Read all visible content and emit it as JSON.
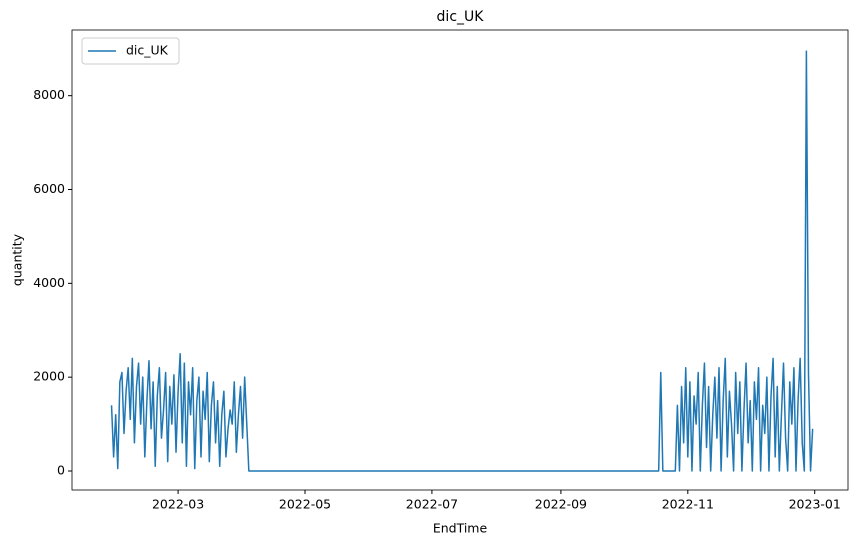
{
  "chart_data": {
    "type": "line",
    "title": "dic_UK",
    "x_label": "EndTime",
    "y_label": "quantity",
    "legend": "upper left",
    "x": [
      "2022-01-28",
      "2022-01-29",
      "2022-01-30",
      "2022-01-31",
      "2022-02-01",
      "2022-02-02",
      "2022-02-03",
      "2022-02-04",
      "2022-02-05",
      "2022-02-06",
      "2022-02-07",
      "2022-02-08",
      "2022-02-09",
      "2022-02-10",
      "2022-02-11",
      "2022-02-12",
      "2022-02-13",
      "2022-02-14",
      "2022-02-15",
      "2022-02-16",
      "2022-02-17",
      "2022-02-18",
      "2022-02-19",
      "2022-02-20",
      "2022-02-21",
      "2022-02-22",
      "2022-02-23",
      "2022-02-24",
      "2022-02-25",
      "2022-02-26",
      "2022-02-27",
      "2022-02-28",
      "2022-03-01",
      "2022-03-02",
      "2022-03-03",
      "2022-03-04",
      "2022-03-05",
      "2022-03-06",
      "2022-03-07",
      "2022-03-08",
      "2022-03-09",
      "2022-03-10",
      "2022-03-11",
      "2022-03-12",
      "2022-03-13",
      "2022-03-14",
      "2022-03-15",
      "2022-03-16",
      "2022-03-17",
      "2022-03-18",
      "2022-03-19",
      "2022-03-20",
      "2022-03-21",
      "2022-03-22",
      "2022-03-23",
      "2022-03-24",
      "2022-03-25",
      "2022-03-26",
      "2022-03-27",
      "2022-03-28",
      "2022-03-29",
      "2022-03-30",
      "2022-03-31",
      "2022-04-01",
      "2022-04-02",
      "2022-04-03",
      "2022-04-04",
      "2022-10-18",
      "2022-10-19",
      "2022-10-20",
      "2022-10-26",
      "2022-10-27",
      "2022-10-28",
      "2022-10-29",
      "2022-10-30",
      "2022-10-31",
      "2022-11-01",
      "2022-11-02",
      "2022-11-03",
      "2022-11-04",
      "2022-11-05",
      "2022-11-06",
      "2022-11-07",
      "2022-11-08",
      "2022-11-09",
      "2022-11-10",
      "2022-11-11",
      "2022-11-12",
      "2022-11-13",
      "2022-11-14",
      "2022-11-15",
      "2022-11-16",
      "2022-11-17",
      "2022-11-18",
      "2022-11-19",
      "2022-11-20",
      "2022-11-21",
      "2022-11-22",
      "2022-11-23",
      "2022-11-24",
      "2022-11-25",
      "2022-11-26",
      "2022-11-27",
      "2022-11-28",
      "2022-11-29",
      "2022-11-30",
      "2022-12-01",
      "2022-12-02",
      "2022-12-03",
      "2022-12-04",
      "2022-12-05",
      "2022-12-06",
      "2022-12-07",
      "2022-12-08",
      "2022-12-09",
      "2022-12-10",
      "2022-12-11",
      "2022-12-12",
      "2022-12-13",
      "2022-12-14",
      "2022-12-15",
      "2022-12-16",
      "2022-12-17",
      "2022-12-18",
      "2022-12-19",
      "2022-12-20",
      "2022-12-21",
      "2022-12-22",
      "2022-12-23",
      "2022-12-24",
      "2022-12-25",
      "2022-12-26",
      "2022-12-27",
      "2022-12-28",
      "2022-12-29",
      "2022-12-30",
      "2022-12-31"
    ],
    "series": [
      {
        "name": "dic_UK",
        "color": "#1f77b4",
        "values": [
          1400,
          300,
          1200,
          50,
          1900,
          2100,
          800,
          1700,
          2200,
          1100,
          2400,
          600,
          1800,
          2300,
          1000,
          2000,
          300,
          1500,
          2350,
          900,
          1900,
          100,
          1600,
          2200,
          700,
          1300,
          2100,
          200,
          1800,
          1000,
          2050,
          400,
          1700,
          2500,
          600,
          2300,
          100,
          1900,
          1200,
          2200,
          50,
          1500,
          2000,
          300,
          1700,
          1100,
          2100,
          200,
          1400,
          1900,
          600,
          1500,
          100,
          1200,
          1700,
          300,
          900,
          1300,
          1000,
          1900,
          400,
          1200,
          1800,
          700,
          2000,
          1000,
          0,
          0,
          2100,
          0,
          0,
          1400,
          0,
          1800,
          600,
          2200,
          300,
          1900,
          0,
          1600,
          1000,
          2100,
          0,
          1400,
          2300,
          500,
          1800,
          0,
          1200,
          2000,
          700,
          2200,
          0,
          1500,
          2400,
          300,
          1700,
          1000,
          0,
          2100,
          800,
          1900,
          0,
          1300,
          2300,
          600,
          1500,
          0,
          1900,
          1100,
          2200,
          0,
          1400,
          800,
          2000,
          0,
          1600,
          2400,
          300,
          1800,
          0,
          1200,
          2300,
          700,
          0,
          1900,
          1000,
          2200,
          0,
          1500,
          2400,
          600,
          0,
          8950,
          2100,
          0,
          900
        ]
      }
    ],
    "xlim": [
      "2022-01-09",
      "2023-01-17"
    ],
    "xticks": [
      {
        "value": "2022-03-01",
        "label": "2022-03"
      },
      {
        "value": "2022-05-01",
        "label": "2022-05"
      },
      {
        "value": "2022-07-01",
        "label": "2022-07"
      },
      {
        "value": "2022-09-01",
        "label": "2022-09"
      },
      {
        "value": "2022-11-01",
        "label": "2022-11"
      },
      {
        "value": "2023-01-01",
        "label": "2023-01"
      }
    ],
    "ylim": [
      -405,
      9400
    ],
    "yticks": [
      0,
      2000,
      4000,
      6000,
      8000
    ]
  }
}
